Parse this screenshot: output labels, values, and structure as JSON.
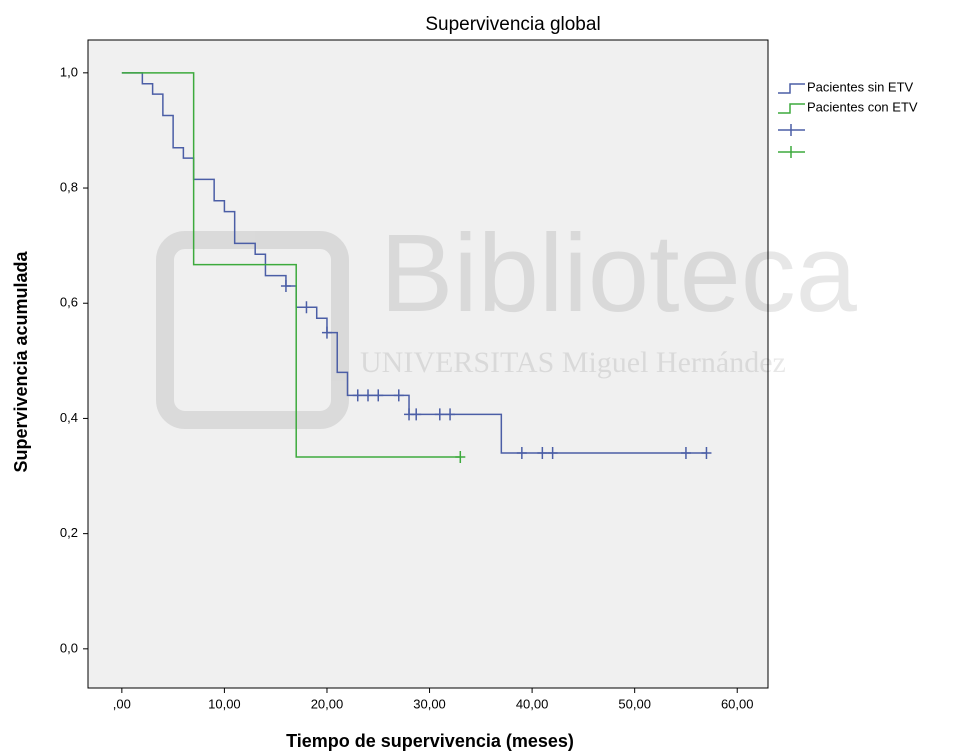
{
  "chart_data": {
    "type": "step",
    "title": "Supervivencia global",
    "xlabel": "Tiempo de supervivencia (meses)",
    "ylabel": "Supervivencia acumulada",
    "watermark": [
      "Biblioteca",
      "UNIVERSITAS Miguel Hernández"
    ],
    "xlim": [
      -3.3,
      63
    ],
    "ylim": [
      -0.068,
      1.057
    ],
    "xticks": [
      {
        "value": 0,
        "label": ",00"
      },
      {
        "value": 10,
        "label": "10,00"
      },
      {
        "value": 20,
        "label": "20,00"
      },
      {
        "value": 30,
        "label": "30,00"
      },
      {
        "value": 40,
        "label": "40,00"
      },
      {
        "value": 50,
        "label": "50,00"
      },
      {
        "value": 60,
        "label": "60,00"
      }
    ],
    "yticks": [
      {
        "value": 0,
        "label": "0,0"
      },
      {
        "value": 0.2,
        "label": "0,2"
      },
      {
        "value": 0.4,
        "label": "0,4"
      },
      {
        "value": 0.6,
        "label": "0,6"
      },
      {
        "value": 0.8,
        "label": "0,8"
      },
      {
        "value": 1,
        "label": "1,0"
      }
    ],
    "series": [
      {
        "name": "Pacientes sin ETV",
        "color": "#4b5ea6",
        "x": [
          0,
          2,
          3,
          4,
          5,
          6,
          7,
          9,
          10,
          11,
          13,
          14,
          16,
          17,
          19,
          20,
          21,
          22,
          28,
          37,
          57
        ],
        "values": [
          1.0,
          0.981,
          0.963,
          0.926,
          0.87,
          0.852,
          0.815,
          0.778,
          0.759,
          0.704,
          0.685,
          0.648,
          0.63,
          0.593,
          0.574,
          0.549,
          0.48,
          0.44,
          0.407,
          0.34,
          0.34
        ],
        "censored_x": [
          16,
          18,
          20,
          23,
          24,
          25,
          27,
          28,
          28.7,
          31,
          32,
          39,
          41,
          42,
          55,
          57
        ],
        "censored_values": [
          0.63,
          0.593,
          0.549,
          0.44,
          0.44,
          0.44,
          0.44,
          0.407,
          0.407,
          0.407,
          0.407,
          0.34,
          0.34,
          0.34,
          0.34,
          0.34
        ]
      },
      {
        "name": "Pacientes con ETV",
        "color": "#3daa3d",
        "x": [
          0,
          7,
          17,
          33
        ],
        "values": [
          1.0,
          0.667,
          0.333,
          0.333
        ],
        "censored_x": [
          33
        ],
        "censored_values": [
          0.333
        ]
      }
    ]
  }
}
